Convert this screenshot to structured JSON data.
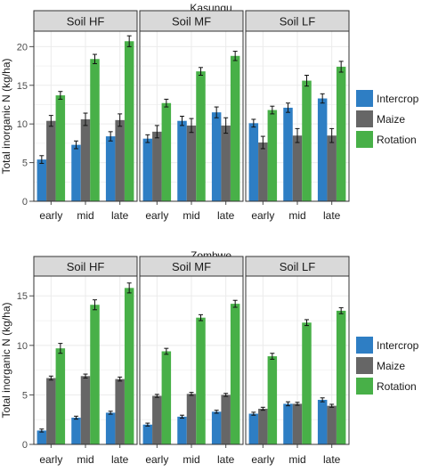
{
  "chart_data": [
    {
      "type": "bar",
      "title": "Kasungu",
      "ylabel": "Total inorganic N (kg/ha)",
      "xlabel": "",
      "ylim": [
        0,
        22
      ],
      "yticks": [
        0,
        5,
        10,
        15,
        20
      ],
      "categories": [
        "early",
        "mid",
        "late"
      ],
      "facets": [
        {
          "label": "Soil HF",
          "series": [
            {
              "name": "Intercrop",
              "values": [
                5.4,
                7.3,
                8.4
              ],
              "errors": [
                0.5,
                0.5,
                0.6
              ]
            },
            {
              "name": "Maize",
              "values": [
                10.4,
                10.6,
                10.5
              ],
              "errors": [
                0.7,
                0.8,
                0.8
              ]
            },
            {
              "name": "Rotation",
              "values": [
                13.7,
                18.4,
                20.7
              ],
              "errors": [
                0.5,
                0.6,
                0.7
              ]
            }
          ]
        },
        {
          "label": "Soil MF",
          "series": [
            {
              "name": "Intercrop",
              "values": [
                8.1,
                10.4,
                11.5
              ],
              "errors": [
                0.5,
                0.6,
                0.7
              ]
            },
            {
              "name": "Maize",
              "values": [
                9.0,
                9.8,
                9.8
              ],
              "errors": [
                0.8,
                0.9,
                1.0
              ]
            },
            {
              "name": "Rotation",
              "values": [
                12.7,
                16.8,
                18.8
              ],
              "errors": [
                0.5,
                0.5,
                0.6
              ]
            }
          ]
        },
        {
          "label": "Soil LF",
          "series": [
            {
              "name": "Intercrop",
              "values": [
                10.1,
                12.1,
                13.3
              ],
              "errors": [
                0.5,
                0.6,
                0.6
              ]
            },
            {
              "name": "Maize",
              "values": [
                7.6,
                8.5,
                8.5
              ],
              "errors": [
                0.8,
                0.9,
                0.9
              ]
            },
            {
              "name": "Rotation",
              "values": [
                11.8,
                15.6,
                17.4
              ],
              "errors": [
                0.5,
                0.7,
                0.7
              ]
            }
          ]
        }
      ]
    },
    {
      "type": "bar",
      "title": "Zombwe",
      "ylabel": "Total inorganic N (kg/ha)",
      "xlabel": "",
      "ylim": [
        0,
        17
      ],
      "yticks": [
        0,
        5,
        10,
        15
      ],
      "categories": [
        "early",
        "mid",
        "late"
      ],
      "facets": [
        {
          "label": "Soil HF",
          "series": [
            {
              "name": "Intercrop",
              "values": [
                1.4,
                2.7,
                3.2
              ],
              "errors": [
                0.15,
                0.15,
                0.15
              ]
            },
            {
              "name": "Maize",
              "values": [
                6.7,
                6.9,
                6.6
              ],
              "errors": [
                0.2,
                0.2,
                0.2
              ]
            },
            {
              "name": "Rotation",
              "values": [
                9.7,
                14.1,
                15.8
              ],
              "errors": [
                0.5,
                0.5,
                0.5
              ]
            }
          ]
        },
        {
          "label": "Soil MF",
          "series": [
            {
              "name": "Intercrop",
              "values": [
                2.0,
                2.8,
                3.3
              ],
              "errors": [
                0.15,
                0.15,
                0.15
              ]
            },
            {
              "name": "Maize",
              "values": [
                4.9,
                5.1,
                5.0
              ],
              "errors": [
                0.15,
                0.15,
                0.15
              ]
            },
            {
              "name": "Rotation",
              "values": [
                9.4,
                12.8,
                14.2
              ],
              "errors": [
                0.3,
                0.3,
                0.35
              ]
            }
          ]
        },
        {
          "label": "Soil LF",
          "series": [
            {
              "name": "Intercrop",
              "values": [
                3.1,
                4.1,
                4.5
              ],
              "errors": [
                0.15,
                0.2,
                0.2
              ]
            },
            {
              "name": "Maize",
              "values": [
                3.6,
                4.1,
                3.9
              ],
              "errors": [
                0.15,
                0.15,
                0.15
              ]
            },
            {
              "name": "Rotation",
              "values": [
                8.9,
                12.3,
                13.5
              ],
              "errors": [
                0.3,
                0.3,
                0.3
              ]
            }
          ]
        }
      ]
    }
  ],
  "legend": {
    "placement": "right",
    "entries": [
      {
        "label": "Intercrop",
        "color": "#2e7ec4"
      },
      {
        "label": "Maize",
        "color": "#666666"
      },
      {
        "label": "Rotation",
        "color": "#48b048"
      }
    ]
  },
  "style": {
    "panel_bg": "#ffffff",
    "grid": "#ebebeb",
    "strip_bg": "#d9d9d9",
    "border": "#333333",
    "text": "#1a1a1a",
    "grid_on": true
  }
}
